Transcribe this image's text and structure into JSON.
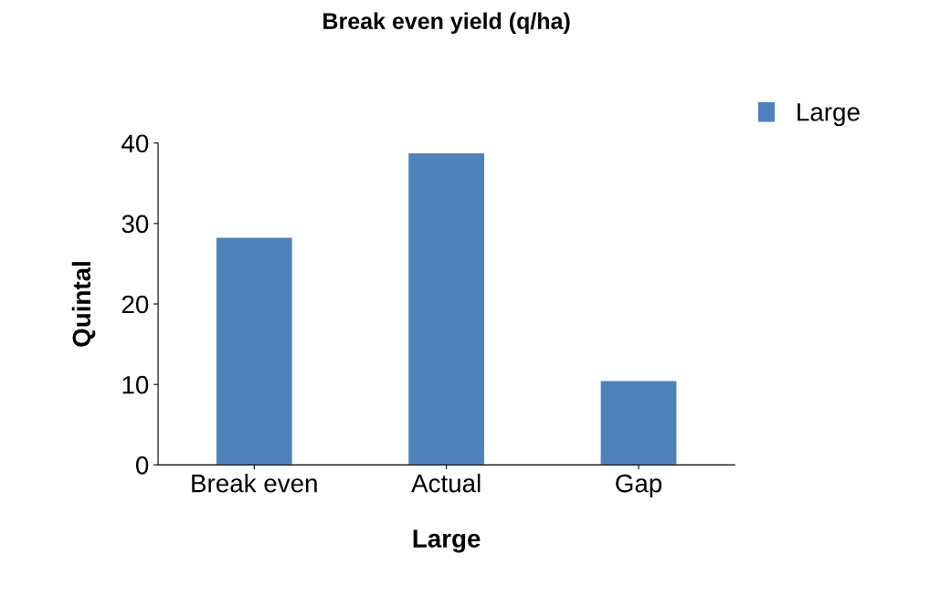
{
  "chart_data": {
    "type": "bar",
    "title": "Break even yield (q/ha)",
    "xlabel": "Large",
    "ylabel": "Quintal",
    "categories": [
      "Break even",
      "Actual",
      "Gap"
    ],
    "series": [
      {
        "name": "Large",
        "color": "#4f81bd",
        "values": [
          28.3,
          38.8,
          10.5
        ]
      }
    ],
    "ylim": [
      0,
      40
    ],
    "yticks": [
      0,
      10,
      20,
      30,
      40
    ],
    "grid": false,
    "legend": "top right"
  }
}
